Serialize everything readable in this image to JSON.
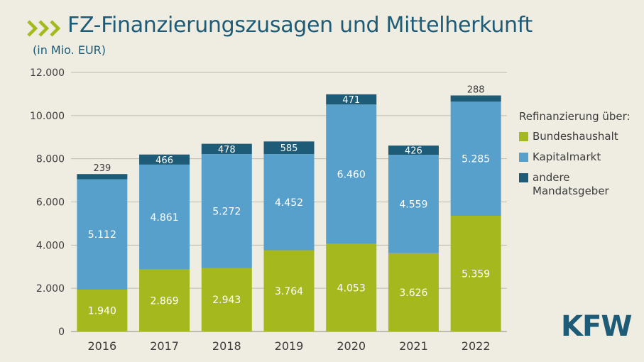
{
  "header": {
    "title": "FZ-Finanzierungszusagen und Mittelherkunft",
    "subtitle": "(in Mio. EUR)"
  },
  "logo": {
    "text": "KFW",
    "color": "#1d5b76"
  },
  "colors": {
    "bundeshaushalt": "#a5b81e",
    "kapitalmarkt": "#57a0cc",
    "andere": "#1d5b76",
    "title": "#1d5b76",
    "accent": "#a5b81e"
  },
  "legend": {
    "title": "Refinanzierung über:",
    "items": [
      {
        "label": "Bundeshaushalt",
        "color": "#a5b81e"
      },
      {
        "label": "Kapitalmarkt",
        "color": "#57a0cc"
      },
      {
        "label": "andere Mandatsgeber",
        "color": "#1d5b76"
      }
    ]
  },
  "chart_data": {
    "type": "bar",
    "stacked": true,
    "title": "FZ-Finanzierungszusagen und Mittelherkunft",
    "subtitle": "(in Mio. EUR)",
    "xlabel": "",
    "ylabel": "",
    "ylim": [
      0,
      12000
    ],
    "yticks": [
      0,
      2000,
      4000,
      6000,
      8000,
      10000,
      12000
    ],
    "ytick_labels": [
      "0",
      "2.000",
      "4.000",
      "6.000",
      "8.000",
      "10.000",
      "12.000"
    ],
    "grid": true,
    "legend_position": "right",
    "categories": [
      "2016",
      "2017",
      "2018",
      "2019",
      "2020",
      "2021",
      "2022"
    ],
    "series": [
      {
        "name": "Bundeshaushalt",
        "values": [
          1940,
          2869,
          2943,
          3764,
          4053,
          3626,
          5359
        ],
        "labels": [
          "1.940",
          "2.869",
          "2.943",
          "3.764",
          "4.053",
          "3.626",
          "5.359"
        ],
        "color": "#a5b81e"
      },
      {
        "name": "Kapitalmarkt",
        "values": [
          5112,
          4861,
          5272,
          4452,
          6460,
          4559,
          5285
        ],
        "labels": [
          "5.112",
          "4.861",
          "5.272",
          "4.452",
          "6.460",
          "4.559",
          "5.285"
        ],
        "color": "#57a0cc"
      },
      {
        "name": "andere Mandatsgeber",
        "values": [
          239,
          466,
          478,
          585,
          471,
          426,
          288
        ],
        "labels": [
          "239",
          "466",
          "478",
          "585",
          "471",
          "426",
          "288"
        ],
        "color": "#1d5b76"
      }
    ]
  }
}
